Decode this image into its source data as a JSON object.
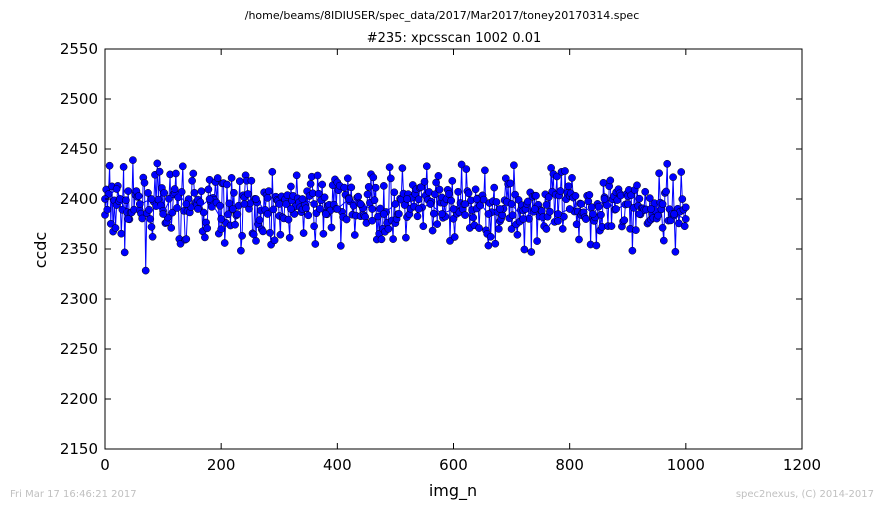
{
  "chart_data": {
    "type": "line",
    "suptitle": "/home/beams/8IDIUSER/spec_data/2017/Mar2017/toney20170314.spec",
    "title": "#235: xpcsscan 1002 0.01",
    "xlabel": "img_n",
    "ylabel": "ccdc",
    "xlim": [
      0,
      1200
    ],
    "ylim": [
      2150,
      2550
    ],
    "xticks": [
      "0",
      "200",
      "400",
      "600",
      "800",
      "1000",
      "1200"
    ],
    "yticks": [
      "2150",
      "2200",
      "2250",
      "2300",
      "2350",
      "2400",
      "2450",
      "2500",
      "2550"
    ],
    "line_color": "#0000ff",
    "marker_color": "#0000ff",
    "grid": false,
    "series": [
      {
        "x": [
          0,
          20,
          40,
          60,
          80,
          100,
          120,
          140,
          160,
          180,
          200,
          220,
          240,
          260,
          280,
          300,
          320,
          340,
          360,
          380,
          400,
          420,
          440,
          460,
          480,
          500,
          520,
          540,
          560,
          580,
          600,
          620,
          640,
          660,
          680,
          700,
          720,
          740,
          760,
          780,
          800,
          820,
          840,
          860,
          880,
          900,
          920,
          940,
          960,
          980,
          1000
        ],
        "y": [
          2400,
          2410,
          2380,
          2395,
          2400,
          2385,
          2410,
          2395,
          2390,
          2400,
          2380,
          2390,
          2395,
          2400,
          2385,
          2395,
          2390,
          2400,
          2395,
          2385,
          2390,
          2400,
          2395,
          2390,
          2385,
          2395,
          2400,
          2390,
          2395,
          2385,
          2390,
          2395,
          2400,
          2385,
          2390,
          2395,
          2380,
          2390,
          2370,
          2385,
          2390,
          2395,
          2385,
          2400,
          2390,
          2395,
          2385,
          2390,
          2395,
          2385,
          2380
        ]
      }
    ]
  },
  "footer": {
    "left": "Fri Mar 17 16:46:21 2017",
    "right": "spec2nexus, (C) 2014-2017"
  }
}
